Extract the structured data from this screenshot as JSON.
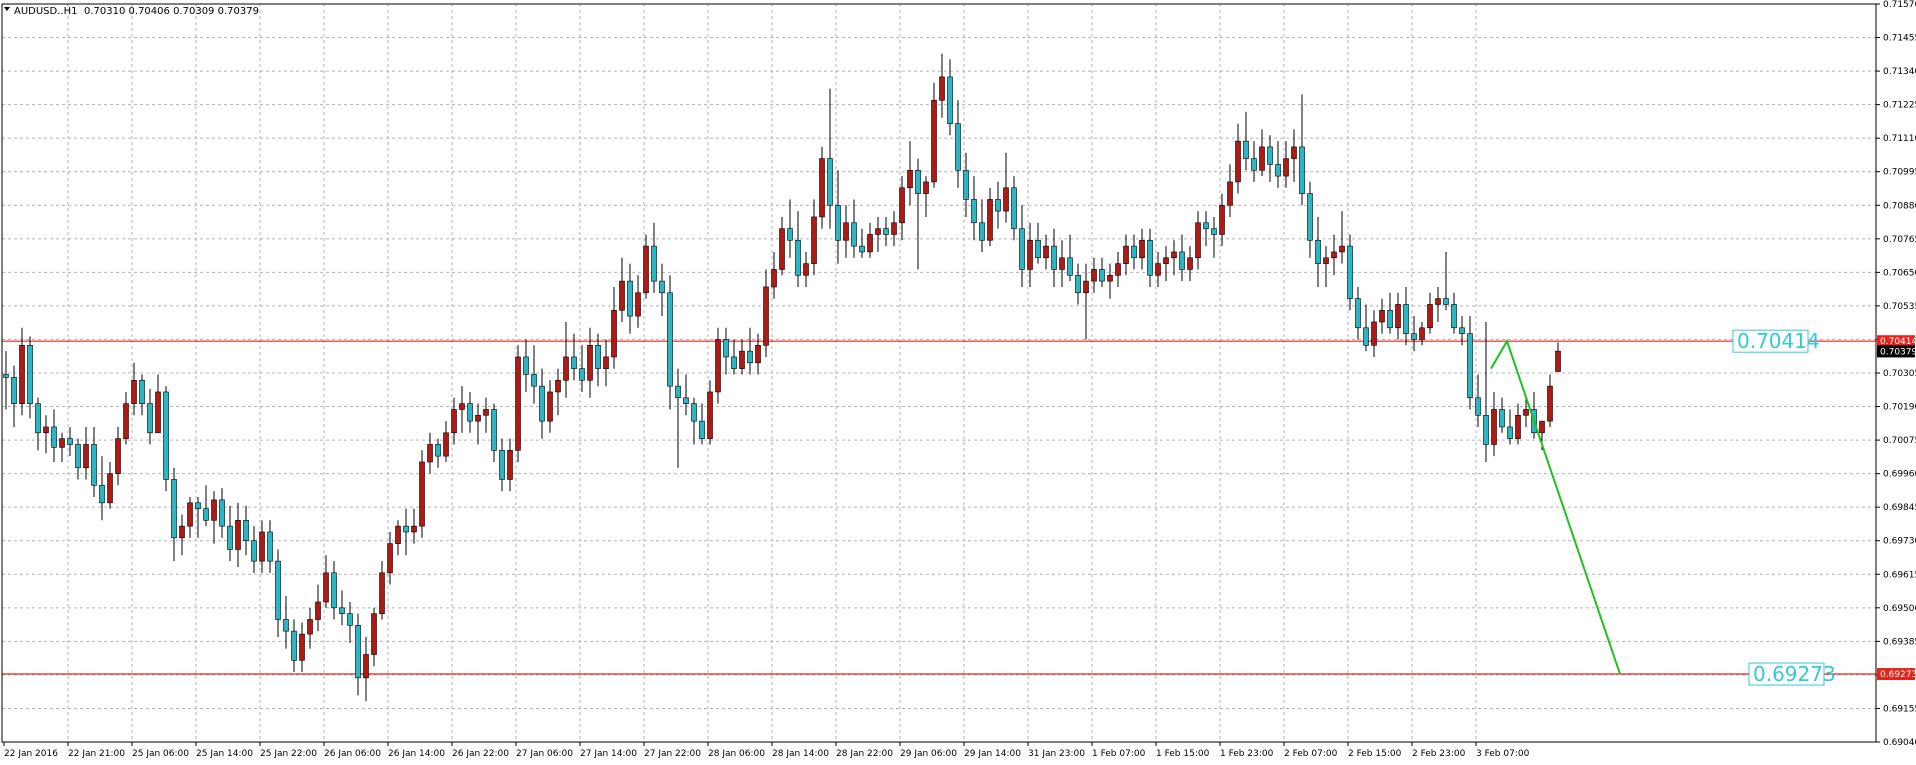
{
  "header": {
    "symbol": "AUDUSD..H1",
    "ohlc": "0.70310 0.70406 0.70309 0.70379",
    "menu_icon": "triangle-down-icon"
  },
  "colors": {
    "bull": "#2AB7C3",
    "bear": "#B01A14",
    "wick": "#000000",
    "grid": "#B4B4B4",
    "level_line": "#E8231B",
    "level_label_bg": "#E8231B",
    "bid_label_bg": "#000000",
    "projection": "#21C021",
    "box_text": "#35C9D6"
  },
  "chart_data": {
    "type": "candlestick",
    "timeframe": "H1",
    "ylim": [
      0.6904,
      0.7157
    ],
    "y_ticks": [
      "0.71570",
      "0.71455",
      "0.71340",
      "0.71225",
      "0.71110",
      "0.70995",
      "0.70880",
      "0.70765",
      "0.70650",
      "0.70535",
      "0.70420",
      "0.70305",
      "0.70190",
      "0.70075",
      "0.69960",
      "0.69845",
      "0.69730",
      "0.69615",
      "0.69500",
      "0.69385",
      "0.69270",
      "0.69155",
      "0.69040"
    ],
    "x_ticks": [
      "22 Jan 2016",
      "22 Jan 21:00",
      "25 Jan 06:00",
      "25 Jan 14:00",
      "25 Jan 22:00",
      "26 Jan 06:00",
      "26 Jan 14:00",
      "26 Jan 22:00",
      "27 Jan 06:00",
      "27 Jan 14:00",
      "27 Jan 22:00",
      "28 Jan 06:00",
      "28 Jan 14:00",
      "28 Jan 22:00",
      "29 Jan 06:00",
      "29 Jan 14:00",
      "31 Jan 23:00",
      "1 Feb 07:00",
      "1 Feb 15:00",
      "1 Feb 23:00",
      "2 Feb 07:00",
      "2 Feb 15:00",
      "2 Feb 23:00",
      "3 Feb 07:00"
    ],
    "candles": [
      [
        0.703,
        0.7038,
        0.7018,
        0.7029
      ],
      [
        0.7029,
        0.7033,
        0.7012,
        0.702
      ],
      [
        0.702,
        0.7046,
        0.7016,
        0.704
      ],
      [
        0.704,
        0.7043,
        0.7015,
        0.702
      ],
      [
        0.702,
        0.7022,
        0.7004,
        0.701
      ],
      [
        0.701,
        0.7016,
        0.7003,
        0.7012
      ],
      [
        0.7012,
        0.7018,
        0.7,
        0.7005
      ],
      [
        0.7005,
        0.701,
        0.7,
        0.7008
      ],
      [
        0.7008,
        0.7012,
        0.7002,
        0.7006
      ],
      [
        0.7006,
        0.7008,
        0.6994,
        0.6998
      ],
      [
        0.6998,
        0.7012,
        0.6994,
        0.7006
      ],
      [
        0.7006,
        0.7012,
        0.6988,
        0.6992
      ],
      [
        0.6992,
        0.7002,
        0.698,
        0.6986
      ],
      [
        0.6986,
        0.7,
        0.6984,
        0.6996
      ],
      [
        0.6996,
        0.7012,
        0.6992,
        0.7008
      ],
      [
        0.7008,
        0.7024,
        0.7006,
        0.702
      ],
      [
        0.702,
        0.7034,
        0.7016,
        0.7028
      ],
      [
        0.7028,
        0.703,
        0.7016,
        0.702
      ],
      [
        0.702,
        0.7025,
        0.7006,
        0.701
      ],
      [
        0.701,
        0.703,
        0.701,
        0.7024
      ],
      [
        0.7024,
        0.7026,
        0.699,
        0.6994
      ],
      [
        0.6994,
        0.6998,
        0.6966,
        0.6974
      ],
      [
        0.6974,
        0.6982,
        0.6968,
        0.6978
      ],
      [
        0.6978,
        0.6988,
        0.6974,
        0.6986
      ],
      [
        0.6986,
        0.6988,
        0.6974,
        0.6984
      ],
      [
        0.6984,
        0.6992,
        0.6978,
        0.698
      ],
      [
        0.698,
        0.699,
        0.6972,
        0.6987
      ],
      [
        0.6987,
        0.6991,
        0.6974,
        0.6978
      ],
      [
        0.6978,
        0.6985,
        0.6966,
        0.697
      ],
      [
        0.697,
        0.6986,
        0.6964,
        0.698
      ],
      [
        0.698,
        0.6985,
        0.6968,
        0.6973
      ],
      [
        0.6973,
        0.6978,
        0.6962,
        0.6966
      ],
      [
        0.6966,
        0.698,
        0.6962,
        0.6976
      ],
      [
        0.6976,
        0.698,
        0.6962,
        0.6966
      ],
      [
        0.6966,
        0.697,
        0.694,
        0.6946
      ],
      [
        0.6946,
        0.6954,
        0.6936,
        0.6942
      ],
      [
        0.6942,
        0.6946,
        0.6928,
        0.6932
      ],
      [
        0.6932,
        0.6945,
        0.6928,
        0.6941
      ],
      [
        0.6941,
        0.695,
        0.6936,
        0.6946
      ],
      [
        0.6946,
        0.6958,
        0.6942,
        0.6952
      ],
      [
        0.6952,
        0.6968,
        0.695,
        0.6962
      ],
      [
        0.6962,
        0.6966,
        0.6946,
        0.695
      ],
      [
        0.695,
        0.6956,
        0.6944,
        0.6948
      ],
      [
        0.6948,
        0.6952,
        0.6938,
        0.6944
      ],
      [
        0.6944,
        0.6948,
        0.692,
        0.6926
      ],
      [
        0.6926,
        0.694,
        0.6918,
        0.6934
      ],
      [
        0.6934,
        0.695,
        0.693,
        0.6948
      ],
      [
        0.6948,
        0.6966,
        0.6946,
        0.6962
      ],
      [
        0.6962,
        0.6976,
        0.6958,
        0.6972
      ],
      [
        0.6972,
        0.698,
        0.6968,
        0.6978
      ],
      [
        0.6978,
        0.6984,
        0.6968,
        0.6976
      ],
      [
        0.6976,
        0.6984,
        0.6972,
        0.6978
      ],
      [
        0.6978,
        0.7004,
        0.6974,
        0.7
      ],
      [
        0.7,
        0.701,
        0.6996,
        0.7006
      ],
      [
        0.7006,
        0.7008,
        0.6998,
        0.7002
      ],
      [
        0.7002,
        0.7014,
        0.7,
        0.701
      ],
      [
        0.701,
        0.7022,
        0.7006,
        0.7018
      ],
      [
        0.7018,
        0.7026,
        0.701,
        0.702
      ],
      [
        0.702,
        0.7024,
        0.701,
        0.7014
      ],
      [
        0.7014,
        0.702,
        0.7006,
        0.7016
      ],
      [
        0.7016,
        0.7022,
        0.701,
        0.7018
      ],
      [
        0.7018,
        0.702,
        0.7,
        0.7004
      ],
      [
        0.7004,
        0.7008,
        0.699,
        0.6994
      ],
      [
        0.6994,
        0.7008,
        0.699,
        0.7004
      ],
      [
        0.7004,
        0.704,
        0.7,
        0.7036
      ],
      [
        0.7036,
        0.7042,
        0.7024,
        0.703
      ],
      [
        0.703,
        0.704,
        0.702,
        0.7026
      ],
      [
        0.7026,
        0.7032,
        0.7008,
        0.7014
      ],
      [
        0.7014,
        0.7028,
        0.701,
        0.7024
      ],
      [
        0.7024,
        0.7032,
        0.7016,
        0.7028
      ],
      [
        0.7028,
        0.7048,
        0.7022,
        0.7036
      ],
      [
        0.7036,
        0.7044,
        0.7028,
        0.7032
      ],
      [
        0.7032,
        0.704,
        0.7024,
        0.7028
      ],
      [
        0.7028,
        0.7046,
        0.7022,
        0.704
      ],
      [
        0.704,
        0.7044,
        0.7026,
        0.7032
      ],
      [
        0.7032,
        0.7042,
        0.7026,
        0.7036
      ],
      [
        0.7036,
        0.706,
        0.7032,
        0.7052
      ],
      [
        0.7052,
        0.707,
        0.7048,
        0.7062
      ],
      [
        0.7062,
        0.7068,
        0.7044,
        0.705
      ],
      [
        0.705,
        0.7064,
        0.7046,
        0.7058
      ],
      [
        0.7058,
        0.7078,
        0.7056,
        0.7074
      ],
      [
        0.7074,
        0.7082,
        0.7058,
        0.7062
      ],
      [
        0.7062,
        0.7068,
        0.705,
        0.7058
      ],
      [
        0.7058,
        0.7064,
        0.7018,
        0.7026
      ],
      [
        0.7026,
        0.7032,
        0.6998,
        0.7022
      ],
      [
        0.7022,
        0.703,
        0.7016,
        0.702
      ],
      [
        0.702,
        0.7022,
        0.7006,
        0.7014
      ],
      [
        0.7014,
        0.702,
        0.7006,
        0.7008
      ],
      [
        0.7008,
        0.7028,
        0.7006,
        0.7024
      ],
      [
        0.7024,
        0.7046,
        0.702,
        0.7042
      ],
      [
        0.7042,
        0.7046,
        0.703,
        0.7036
      ],
      [
        0.7036,
        0.7042,
        0.703,
        0.7032
      ],
      [
        0.7032,
        0.7042,
        0.703,
        0.7038
      ],
      [
        0.7038,
        0.7046,
        0.703,
        0.7034
      ],
      [
        0.7034,
        0.7044,
        0.703,
        0.704
      ],
      [
        0.704,
        0.7066,
        0.7036,
        0.706
      ],
      [
        0.706,
        0.7072,
        0.7056,
        0.7066
      ],
      [
        0.7066,
        0.7084,
        0.7064,
        0.708
      ],
      [
        0.708,
        0.709,
        0.707,
        0.7076
      ],
      [
        0.7076,
        0.7086,
        0.706,
        0.7064
      ],
      [
        0.7064,
        0.7072,
        0.706,
        0.7068
      ],
      [
        0.7068,
        0.709,
        0.7064,
        0.7084
      ],
      [
        0.7084,
        0.7108,
        0.708,
        0.7104
      ],
      [
        0.7104,
        0.7128,
        0.708,
        0.7088
      ],
      [
        0.7088,
        0.71,
        0.7068,
        0.7076
      ],
      [
        0.7076,
        0.7088,
        0.707,
        0.7082
      ],
      [
        0.7082,
        0.709,
        0.707,
        0.7074
      ],
      [
        0.7074,
        0.708,
        0.707,
        0.7072
      ],
      [
        0.7072,
        0.7082,
        0.707,
        0.7078
      ],
      [
        0.7078,
        0.7084,
        0.7072,
        0.708
      ],
      [
        0.708,
        0.7084,
        0.7074,
        0.7078
      ],
      [
        0.7078,
        0.7086,
        0.7074,
        0.7082
      ],
      [
        0.7082,
        0.7098,
        0.7076,
        0.7094
      ],
      [
        0.7094,
        0.711,
        0.7088,
        0.71
      ],
      [
        0.71,
        0.7104,
        0.7066,
        0.7092
      ],
      [
        0.7092,
        0.7098,
        0.7084,
        0.7096
      ],
      [
        0.7096,
        0.713,
        0.7094,
        0.7124
      ],
      [
        0.7124,
        0.714,
        0.7118,
        0.7132
      ],
      [
        0.7132,
        0.7138,
        0.7112,
        0.7116
      ],
      [
        0.7116,
        0.7124,
        0.7094,
        0.71
      ],
      [
        0.71,
        0.7106,
        0.7084,
        0.709
      ],
      [
        0.709,
        0.7098,
        0.7076,
        0.7082
      ],
      [
        0.7082,
        0.709,
        0.7072,
        0.7076
      ],
      [
        0.7076,
        0.7094,
        0.7074,
        0.709
      ],
      [
        0.709,
        0.7096,
        0.708,
        0.7086
      ],
      [
        0.7086,
        0.7106,
        0.7082,
        0.7094
      ],
      [
        0.7094,
        0.7098,
        0.7076,
        0.708
      ],
      [
        0.708,
        0.7088,
        0.706,
        0.7066
      ],
      [
        0.7066,
        0.7082,
        0.706,
        0.7076
      ],
      [
        0.7076,
        0.7082,
        0.7068,
        0.707
      ],
      [
        0.707,
        0.7078,
        0.7066,
        0.7074
      ],
      [
        0.7074,
        0.708,
        0.706,
        0.7066
      ],
      [
        0.7066,
        0.7076,
        0.706,
        0.707
      ],
      [
        0.707,
        0.7078,
        0.7062,
        0.7064
      ],
      [
        0.7064,
        0.7068,
        0.7054,
        0.7058
      ],
      [
        0.7058,
        0.7068,
        0.7042,
        0.7062
      ],
      [
        0.7062,
        0.707,
        0.7058,
        0.7066
      ],
      [
        0.7066,
        0.707,
        0.706,
        0.7062
      ],
      [
        0.7062,
        0.7068,
        0.7056,
        0.7064
      ],
      [
        0.7064,
        0.7072,
        0.706,
        0.7068
      ],
      [
        0.7068,
        0.7078,
        0.7064,
        0.7074
      ],
      [
        0.7074,
        0.7078,
        0.7066,
        0.707
      ],
      [
        0.707,
        0.708,
        0.7066,
        0.7076
      ],
      [
        0.7076,
        0.708,
        0.706,
        0.7064
      ],
      [
        0.7064,
        0.7072,
        0.706,
        0.7068
      ],
      [
        0.7068,
        0.7074,
        0.7062,
        0.707
      ],
      [
        0.707,
        0.7076,
        0.7064,
        0.7072
      ],
      [
        0.7072,
        0.7078,
        0.7062,
        0.7066
      ],
      [
        0.7066,
        0.7074,
        0.7062,
        0.707
      ],
      [
        0.707,
        0.7086,
        0.7066,
        0.7082
      ],
      [
        0.7082,
        0.7086,
        0.7074,
        0.708
      ],
      [
        0.708,
        0.7084,
        0.707,
        0.7078
      ],
      [
        0.7078,
        0.7092,
        0.7074,
        0.7088
      ],
      [
        0.7088,
        0.7102,
        0.7084,
        0.7096
      ],
      [
        0.7096,
        0.7116,
        0.7092,
        0.711
      ],
      [
        0.711,
        0.712,
        0.71,
        0.7104
      ],
      [
        0.7104,
        0.711,
        0.7096,
        0.71
      ],
      [
        0.71,
        0.7114,
        0.7098,
        0.7108
      ],
      [
        0.7108,
        0.7112,
        0.7096,
        0.7102
      ],
      [
        0.7102,
        0.711,
        0.7094,
        0.7098
      ],
      [
        0.7098,
        0.711,
        0.7094,
        0.7104
      ],
      [
        0.7104,
        0.7114,
        0.7096,
        0.7108
      ],
      [
        0.7108,
        0.7126,
        0.7088,
        0.7092
      ],
      [
        0.7092,
        0.7096,
        0.707,
        0.7076
      ],
      [
        0.7076,
        0.7084,
        0.706,
        0.7068
      ],
      [
        0.7068,
        0.7074,
        0.706,
        0.707
      ],
      [
        0.707,
        0.7078,
        0.7064,
        0.7072
      ],
      [
        0.7072,
        0.7086,
        0.7068,
        0.7074
      ],
      [
        0.7074,
        0.7078,
        0.7052,
        0.7056
      ],
      [
        0.7056,
        0.706,
        0.7042,
        0.7046
      ],
      [
        0.7046,
        0.7054,
        0.7038,
        0.704
      ],
      [
        0.704,
        0.7052,
        0.7036,
        0.7048
      ],
      [
        0.7048,
        0.7056,
        0.7044,
        0.7052
      ],
      [
        0.7052,
        0.7058,
        0.7044,
        0.7046
      ],
      [
        0.7046,
        0.7058,
        0.7042,
        0.7054
      ],
      [
        0.7054,
        0.706,
        0.704,
        0.7044
      ],
      [
        0.7044,
        0.705,
        0.7038,
        0.7042
      ],
      [
        0.7042,
        0.7048,
        0.704,
        0.7046
      ],
      [
        0.7046,
        0.7058,
        0.7044,
        0.7054
      ],
      [
        0.7054,
        0.706,
        0.7048,
        0.7056
      ],
      [
        0.7056,
        0.7072,
        0.7052,
        0.7054
      ],
      [
        0.7054,
        0.7058,
        0.7044,
        0.7046
      ],
      [
        0.7046,
        0.705,
        0.704,
        0.7044
      ],
      [
        0.7044,
        0.705,
        0.7018,
        0.7022
      ],
      [
        0.7022,
        0.703,
        0.7012,
        0.7016
      ],
      [
        0.7016,
        0.7048,
        0.7,
        0.7006
      ],
      [
        0.7006,
        0.7024,
        0.7002,
        0.7018
      ],
      [
        0.7018,
        0.7022,
        0.701,
        0.7012
      ],
      [
        0.7012,
        0.7018,
        0.7006,
        0.7008
      ],
      [
        0.7008,
        0.702,
        0.7006,
        0.7016
      ],
      [
        0.7016,
        0.7022,
        0.7012,
        0.7018
      ],
      [
        0.7018,
        0.7024,
        0.7008,
        0.701
      ],
      [
        0.701,
        0.7014,
        0.7004,
        0.7014
      ],
      [
        0.7014,
        0.703,
        0.7012,
        0.7026
      ],
      [
        0.7031,
        0.7041,
        0.7031,
        0.7038
      ]
    ],
    "levels": [
      {
        "price": 0.70414,
        "label": "0.70414"
      },
      {
        "price": 0.69273,
        "label": "0.69273"
      }
    ],
    "bid": {
      "price": 0.70379,
      "label": "0.70379"
    },
    "projection": [
      0.7032,
      0.70414,
      0.69273
    ],
    "boxes": [
      {
        "price": 0.70414,
        "label": "0.70414"
      },
      {
        "price": 0.69273,
        "label": "0.69273"
      }
    ]
  }
}
